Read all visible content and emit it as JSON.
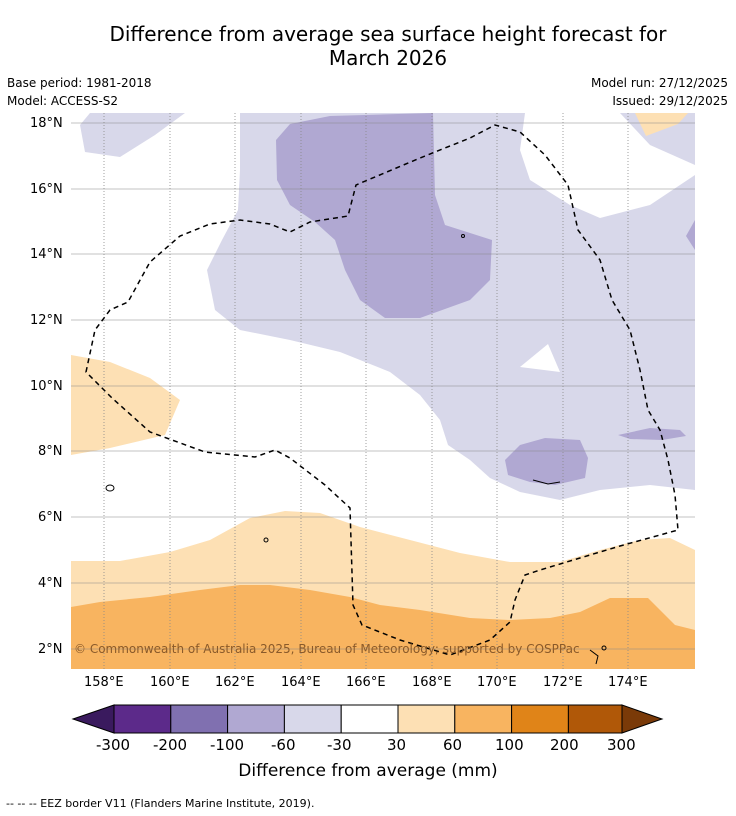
{
  "title_line1": "Difference from average sea surface height forecast for",
  "title_line2": "March 2026",
  "base_period": "Base period: 1981-2018",
  "model": "Model: ACCESS-S2",
  "model_run": "Model run: 27/12/2025",
  "issued": "Issued: 29/12/2025",
  "lat_labels": [
    "18°N",
    "16°N",
    "14°N",
    "12°N",
    "10°N",
    "8°N",
    "6°N",
    "4°N",
    "2°N"
  ],
  "lon_labels": [
    "158°E",
    "160°E",
    "162°E",
    "164°E",
    "166°E",
    "168°E",
    "170°E",
    "172°E",
    "174°E"
  ],
  "copyright": "© Commonwealth of Australia 2025, Bureau of Meteorology; supported by COSPPac",
  "colorbar": {
    "ticks": [
      "-300",
      "-200",
      "-100",
      "-60",
      "-30",
      "30",
      "60",
      "100",
      "200",
      "300"
    ],
    "colors": [
      "#3a1a5e",
      "#5c2a8a",
      "#8070b0",
      "#b0a8d2",
      "#d8d8ea",
      "#ffffff",
      "#fde0b4",
      "#f8b460",
      "#e08418",
      "#b05808",
      "#7a3a08"
    ],
    "title": "Difference from average (mm)"
  },
  "footer": "--  --  -- EEZ border V11 (Flanders Marine Institute, 2019)."
}
